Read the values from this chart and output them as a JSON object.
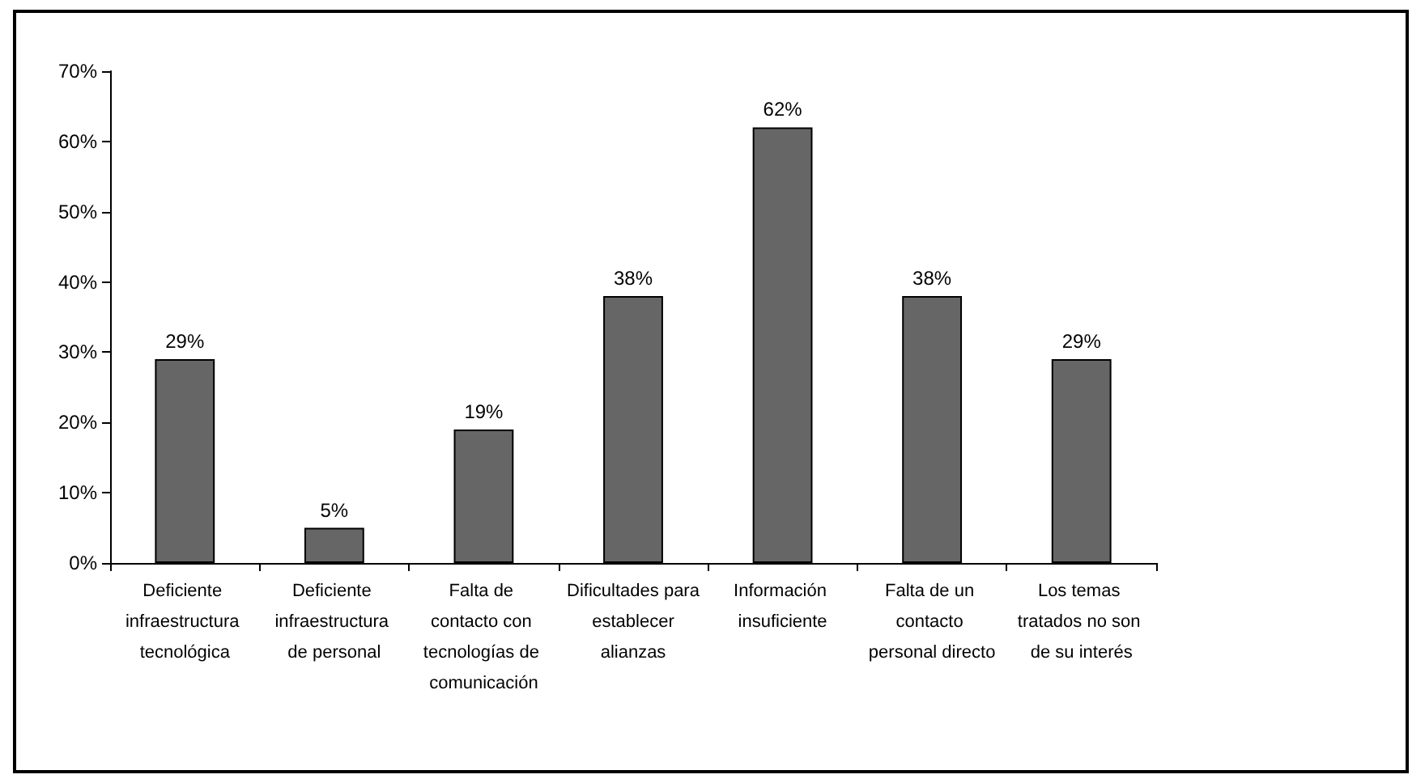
{
  "chart_data": {
    "type": "bar",
    "categories": [
      "Deficiente infraestructura tecnológica",
      "Deficiente infraestructura de personal",
      "Falta de contacto con tecnologías de comunicación",
      "Dificultades para establecer alianzas",
      "Información insuficiente",
      "Falta de un contacto personal directo",
      "Los temas tratados no son de su interés"
    ],
    "values": [
      29,
      5,
      19,
      38,
      62,
      38,
      29
    ],
    "value_labels": [
      "29%",
      "5%",
      "19%",
      "38%",
      "62%",
      "38%",
      "29%"
    ],
    "color": "#666666",
    "ylim": [
      0,
      70
    ],
    "yticks": [
      {
        "value": 0,
        "label": "0%"
      },
      {
        "value": 10,
        "label": "10%"
      },
      {
        "value": 20,
        "label": "20%"
      },
      {
        "value": 30,
        "label": "30%"
      },
      {
        "value": 40,
        "label": "40%"
      },
      {
        "value": 50,
        "label": "50%"
      },
      {
        "value": 60,
        "label": "60%"
      },
      {
        "value": 70,
        "label": "70%"
      }
    ],
    "grid": false
  }
}
